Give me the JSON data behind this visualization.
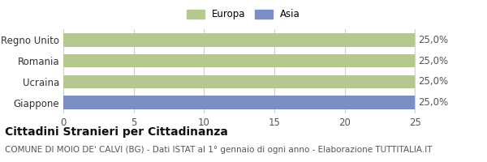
{
  "categories": [
    "Giappone",
    "Ucraina",
    "Romania",
    "Regno Unito"
  ],
  "values": [
    25,
    25,
    25,
    25
  ],
  "bar_colors": [
    "#7b8fc4",
    "#b5c98e",
    "#b5c98e",
    "#b5c98e"
  ],
  "bar_labels": [
    "25,0%",
    "25,0%",
    "25,0%",
    "25,0%"
  ],
  "xlim": [
    0,
    25
  ],
  "xlim_display": 27,
  "xticks": [
    0,
    5,
    10,
    15,
    20,
    25
  ],
  "legend": [
    {
      "label": "Europa",
      "color": "#b5c98e"
    },
    {
      "label": "Asia",
      "color": "#7b8fc4"
    }
  ],
  "title": "Cittadini Stranieri per Cittadinanza",
  "subtitle": "COMUNE DI MOIO DE' CALVI (BG) - Dati ISTAT al 1° gennaio di ogni anno - Elaborazione TUTTITALIA.IT",
  "background_color": "#ffffff",
  "grid_color": "#d0d0d0",
  "title_fontsize": 10,
  "subtitle_fontsize": 7.5,
  "label_fontsize": 8.5,
  "tick_fontsize": 8.5,
  "bar_label_fontsize": 8.5
}
